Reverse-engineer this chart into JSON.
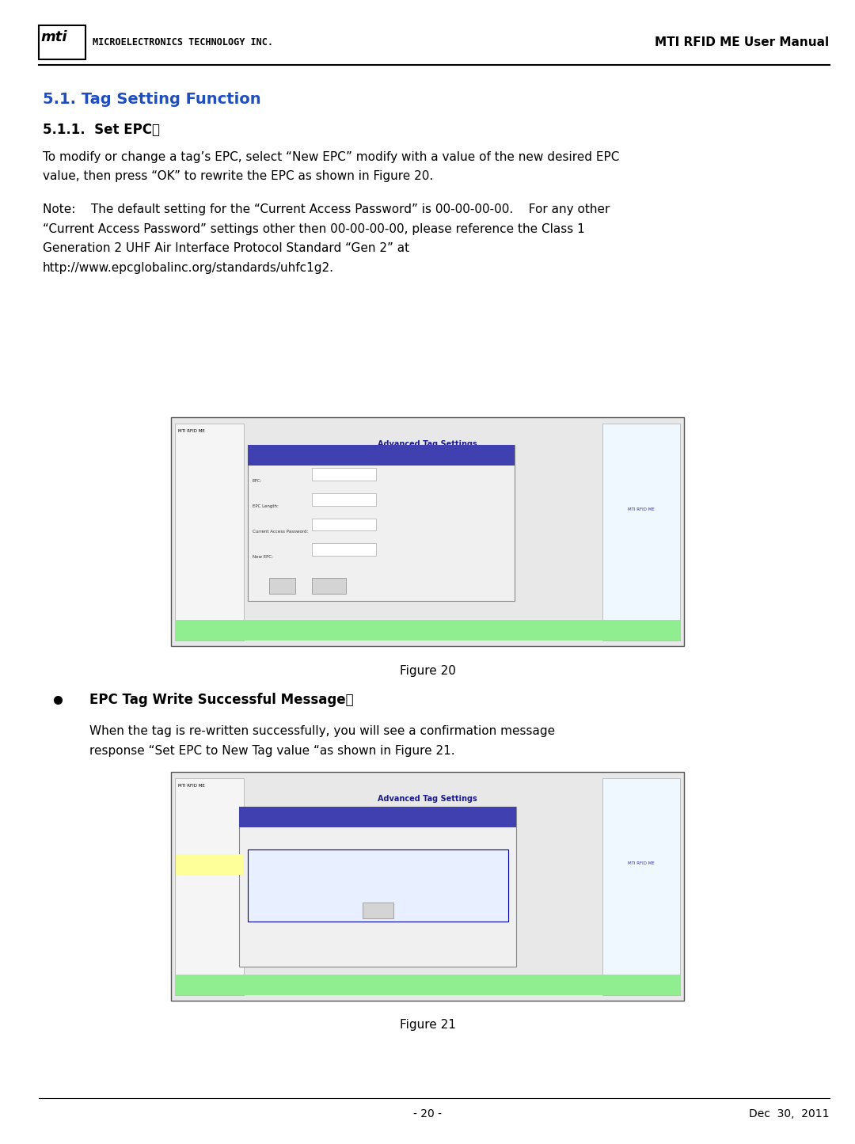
{
  "page_width": 10.8,
  "page_height": 14.45,
  "bg_color": "#ffffff",
  "header_logo_text": "MICROELECTRONICS TECHNOLOGY INC.",
  "header_right_text": "MTI RFID ME User Manual",
  "section_title": "5.1. Tag Setting Function",
  "section_title_color": "#1F4EBF",
  "subsection_title": "5.1.1.  Set EPC：",
  "body_text_1": "To modify or change a tag’s EPC, select “New EPC” modify with a value of the new desired EPC\nvalue, then press “OK” to rewrite the EPC as shown in Figure 20.",
  "note_text": "Note:    The default setting for the “Current Access Password” is 00-00-00-00.    For any other\n“Current Access Password” settings other then 00-00-00-00, please reference the Class 1\nGeneration 2 UHF Air Interface Protocol Standard “Gen 2” at\nhttp://www.epcglobalinc.org/standards/uhfc1g2.",
  "figure20_caption": "Figure 20",
  "bullet_title": "EPC Tag Write Successful Message：",
  "bullet_body": "When the tag is re-written successfully, you will see a confirmation message\nresponse “Set EPC to New Tag value “as shown in Figure 21.",
  "figure21_caption": "Figure 21",
  "footer_page": "- 20 -",
  "footer_date": "Dec  30,  2011",
  "text_color": "#000000",
  "font_size_section": 14,
  "font_size_subsection": 12,
  "font_size_body": 11,
  "font_size_header": 10,
  "font_size_footer": 10
}
